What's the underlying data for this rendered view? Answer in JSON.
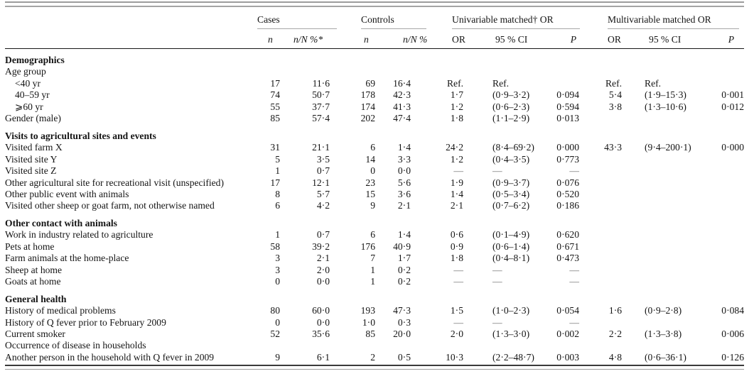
{
  "table": {
    "groups": [
      {
        "label": "Cases"
      },
      {
        "label": "Controls"
      },
      {
        "label": "Univariable matched† OR"
      },
      {
        "label": "Multivariable matched OR"
      }
    ],
    "subheaders": [
      {
        "label": "n"
      },
      {
        "label": "n/N %*"
      },
      {
        "label": "n"
      },
      {
        "label": "n/N %"
      },
      {
        "label": "OR"
      },
      {
        "label": "95 % CI"
      },
      {
        "label": "P"
      },
      {
        "label": "OR"
      },
      {
        "label": "95 % CI"
      },
      {
        "label": "P"
      }
    ],
    "sections": [
      {
        "header": "Demographics",
        "rows": [
          {
            "label": "Age group",
            "indent": false,
            "cells": [
              "",
              "",
              "",
              "",
              "",
              "",
              "",
              "",
              "",
              ""
            ]
          },
          {
            "label": "<40 yr",
            "indent": true,
            "cells": [
              "17",
              "11·6",
              "69",
              "16·4",
              "Ref.",
              "Ref.",
              "",
              "Ref.",
              "Ref.",
              ""
            ]
          },
          {
            "label": "40–59 yr",
            "indent": true,
            "cells": [
              "74",
              "50·7",
              "178",
              "42·3",
              "1·7",
              "(0·9–3·2)",
              "0·094",
              "5·4",
              "(1·9–15·3)",
              "0·001"
            ]
          },
          {
            "label": "⩾60 yr",
            "indent": true,
            "cells": [
              "55",
              "37·7",
              "174",
              "41·3",
              "1·2",
              "(0·6–2·3)",
              "0·594",
              "3·8",
              "(1·3–10·6)",
              "0·012"
            ]
          },
          {
            "label": "Gender (male)",
            "indent": false,
            "cells": [
              "85",
              "57·4",
              "202",
              "47·4",
              "1·8",
              "(1·1–2·9)",
              "0·013",
              "",
              "",
              ""
            ]
          }
        ]
      },
      {
        "header": "Visits to agricultural sites and events",
        "rows": [
          {
            "label": "Visited farm X",
            "indent": false,
            "cells": [
              "31",
              "21·1",
              "6",
              "1·4",
              "24·2",
              "(8·4–69·2)",
              "0·000",
              "43·3",
              "(9·4–200·1)",
              "0·000"
            ]
          },
          {
            "label": "Visited site Y",
            "indent": false,
            "cells": [
              "5",
              "3·5",
              "14",
              "3·3",
              "1·2",
              "(0·4–3·5)",
              "0·773",
              "",
              "",
              ""
            ]
          },
          {
            "label": "Visited site Z",
            "indent": false,
            "cells": [
              "1",
              "0·7",
              "0",
              "0·0",
              "—",
              "—",
              "—",
              "",
              "",
              ""
            ]
          },
          {
            "label": "Other agricultural site for recreational visit (unspecified)",
            "indent": false,
            "cells": [
              "17",
              "12·1",
              "23",
              "5·6",
              "1·9",
              "(0·9–3·7)",
              "0·076",
              "",
              "",
              ""
            ]
          },
          {
            "label": "Other public event with animals",
            "indent": false,
            "cells": [
              "8",
              "5·7",
              "15",
              "3·6",
              "1·4",
              "(0·5–3·4)",
              "0·520",
              "",
              "",
              ""
            ]
          },
          {
            "label": "Visited other sheep or goat farm, not otherwise named",
            "indent": false,
            "cells": [
              "6",
              "4·2",
              "9",
              "2·1",
              "2·1",
              "(0·7–6·2)",
              "0·186",
              "",
              "",
              ""
            ]
          }
        ]
      },
      {
        "header": "Other contact with animals",
        "rows": [
          {
            "label": "Work in industry related to agriculture",
            "indent": false,
            "cells": [
              "1",
              "0·7",
              "6",
              "1·4",
              "0·6",
              "(0·1–4·9)",
              "0·620",
              "",
              "",
              ""
            ]
          },
          {
            "label": "Pets at home",
            "indent": false,
            "cells": [
              "58",
              "39·2",
              "176",
              "40·9",
              "0·9",
              "(0·6–1·4)",
              "0·671",
              "",
              "",
              ""
            ]
          },
          {
            "label": "Farm animals at the home-place",
            "indent": false,
            "cells": [
              "3",
              "2·1",
              "7",
              "1·7",
              "1·8",
              "(0·4–8·1)",
              "0·473",
              "",
              "",
              ""
            ]
          },
          {
            "label": "Sheep at home",
            "indent": false,
            "cells": [
              "3",
              "2·0",
              "1",
              "0·2",
              "—",
              "—",
              "—",
              "",
              "",
              ""
            ]
          },
          {
            "label": "Goats at home",
            "indent": false,
            "cells": [
              "0",
              "0·0",
              "1",
              "0·2",
              "—",
              "—",
              "—",
              "",
              "",
              ""
            ]
          }
        ]
      },
      {
        "header": "General health",
        "rows": [
          {
            "label": "History of medical problems",
            "indent": false,
            "cells": [
              "80",
              "60·0",
              "193",
              "47·3",
              "1·5",
              "(1·0–2·3)",
              "0·054",
              "1·6",
              "(0·9–2·8)",
              "0·084"
            ]
          },
          {
            "label": "History of Q fever prior to February 2009",
            "indent": false,
            "cells": [
              "0",
              "0·0",
              "1·0",
              "0·3",
              "—",
              "—",
              "—",
              "",
              "",
              ""
            ]
          },
          {
            "label": "Current smoker",
            "indent": false,
            "cells": [
              "52",
              "35·6",
              "85",
              "20·0",
              "2·0",
              "(1·3–3·0)",
              "0·002",
              "2·2",
              "(1·3–3·8)",
              "0·006"
            ]
          },
          {
            "label": "Occurrence of disease in households",
            "indent": false,
            "cells": [
              "",
              "",
              "",
              "",
              "",
              "",
              "",
              "",
              "",
              ""
            ]
          },
          {
            "label": "Another person in the household with Q fever in 2009",
            "indent": false,
            "cells": [
              "9",
              "6·1",
              "2",
              "0·5",
              "10·3",
              "(2·2–48·7)",
              "0·003",
              "4·8",
              "(0·6–36·1)",
              "0·126"
            ]
          }
        ]
      }
    ]
  }
}
